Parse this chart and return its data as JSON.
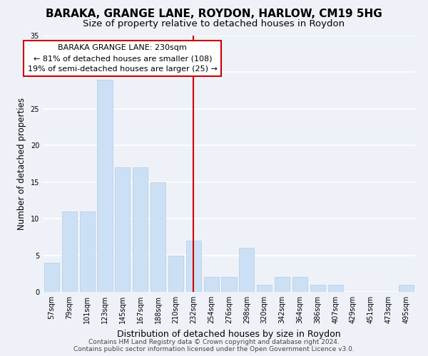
{
  "title1": "BARAKA, GRANGE LANE, ROYDON, HARLOW, CM19 5HG",
  "title2": "Size of property relative to detached houses in Roydon",
  "xlabel": "Distribution of detached houses by size in Roydon",
  "ylabel": "Number of detached properties",
  "bar_labels": [
    "57sqm",
    "79sqm",
    "101sqm",
    "123sqm",
    "145sqm",
    "167sqm",
    "188sqm",
    "210sqm",
    "232sqm",
    "254sqm",
    "276sqm",
    "298sqm",
    "320sqm",
    "342sqm",
    "364sqm",
    "386sqm",
    "407sqm",
    "429sqm",
    "451sqm",
    "473sqm",
    "495sqm"
  ],
  "bar_values": [
    4,
    11,
    11,
    29,
    17,
    17,
    15,
    5,
    7,
    2,
    2,
    6,
    1,
    2,
    2,
    1,
    1,
    0,
    0,
    0,
    1
  ],
  "bar_color": "#cce0f5",
  "bar_edge_color": "#b8d0e8",
  "vline_x_index": 8,
  "vline_color": "#cc0000",
  "annotation_title": "BARAKA GRANGE LANE: 230sqm",
  "annotation_line1": "← 81% of detached houses are smaller (108)",
  "annotation_line2": "19% of semi-detached houses are larger (25) →",
  "annotation_box_color": "#ffffff",
  "annotation_box_edge_color": "#cc0000",
  "ylim": [
    0,
    35
  ],
  "yticks": [
    0,
    5,
    10,
    15,
    20,
    25,
    30,
    35
  ],
  "footer1": "Contains HM Land Registry data © Crown copyright and database right 2024.",
  "footer2": "Contains public sector information licensed under the Open Government Licence v3.0.",
  "background_color": "#eef2f8",
  "grid_color": "#ffffff",
  "title_fontsize": 11,
  "subtitle_fontsize": 9.5,
  "tick_fontsize": 7,
  "ylabel_fontsize": 8.5,
  "xlabel_fontsize": 9,
  "footer_fontsize": 6.5,
  "annotation_fontsize": 8
}
